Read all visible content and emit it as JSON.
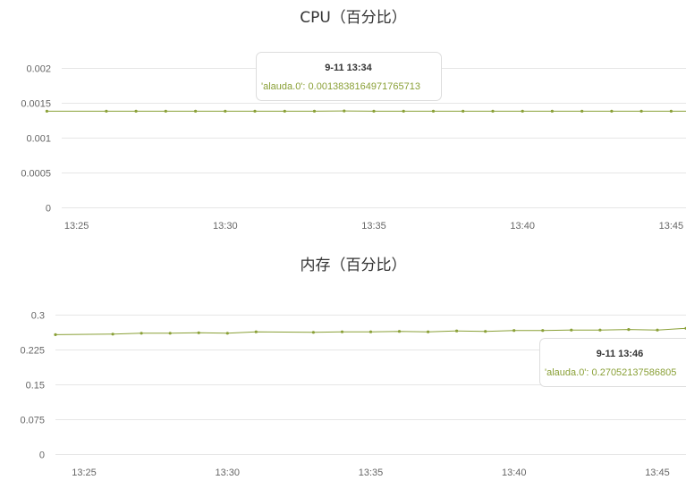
{
  "colors": {
    "series": "#8aa037",
    "grid": "#e6e6e6",
    "tooltip_border": "#dddddd",
    "tooltip_bg": "#ffffff"
  },
  "chart_data": [
    {
      "type": "line",
      "title": "CPU（百分比）",
      "ylim": [
        0,
        0.002
      ],
      "yticks": [
        "0.002",
        "0.0015",
        "0.001",
        "0.0005",
        "0"
      ],
      "xtick_labels": [
        "13:25",
        "13:30",
        "13:35",
        "13:40",
        "13:45"
      ],
      "xlim": [
        "13:24.5",
        "13:45.5"
      ],
      "grid": true,
      "series": [
        {
          "name": "'alauda.0'",
          "x": [
            "13:24",
            "13:26",
            "13:27",
            "13:28",
            "13:29",
            "13:30",
            "13:31",
            "13:32",
            "13:33",
            "13:34",
            "13:35",
            "13:36",
            "13:37",
            "13:38",
            "13:39",
            "13:40",
            "13:41",
            "13:42",
            "13:43",
            "13:44",
            "13:45",
            "13:46"
          ],
          "values": [
            0.00138,
            0.00138,
            0.00138,
            0.00138,
            0.00138,
            0.00138,
            0.00138,
            0.00138,
            0.00138,
            0.0013838164971765713,
            0.00138,
            0.00138,
            0.00138,
            0.00138,
            0.00138,
            0.00138,
            0.00138,
            0.00138,
            0.00138,
            0.00138,
            0.00138,
            0.00138
          ]
        }
      ],
      "tooltip": {
        "header": "9-11 13:34",
        "series": "'alauda.0'",
        "value_text": "0.0013838164971765713"
      }
    },
    {
      "type": "line",
      "title": "内存（百分比）",
      "ylim": [
        0,
        0.3
      ],
      "yticks": [
        "0.3",
        "0.225",
        "0.15",
        "0.075",
        "0"
      ],
      "xtick_labels": [
        "13:25",
        "13:30",
        "13:35",
        "13:40",
        "13:45"
      ],
      "xlim": [
        "13:24",
        "13:46"
      ],
      "grid": true,
      "series": [
        {
          "name": "'alauda.0'",
          "x": [
            "13:24",
            "13:26",
            "13:27",
            "13:28",
            "13:29",
            "13:30",
            "13:31",
            "13:33",
            "13:34",
            "13:35",
            "13:36",
            "13:37",
            "13:38",
            "13:39",
            "13:40",
            "13:41",
            "13:42",
            "13:43",
            "13:44",
            "13:45",
            "13:46"
          ],
          "values": [
            0.257,
            0.258,
            0.26,
            0.26,
            0.261,
            0.26,
            0.263,
            0.262,
            0.263,
            0.263,
            0.264,
            0.263,
            0.265,
            0.264,
            0.266,
            0.266,
            0.267,
            0.267,
            0.268,
            0.267,
            0.270521375868
          ]
        }
      ],
      "tooltip": {
        "header": "9-11 13:46",
        "series": "'alauda.0'",
        "value_text": "0.27052137586805"
      }
    }
  ]
}
